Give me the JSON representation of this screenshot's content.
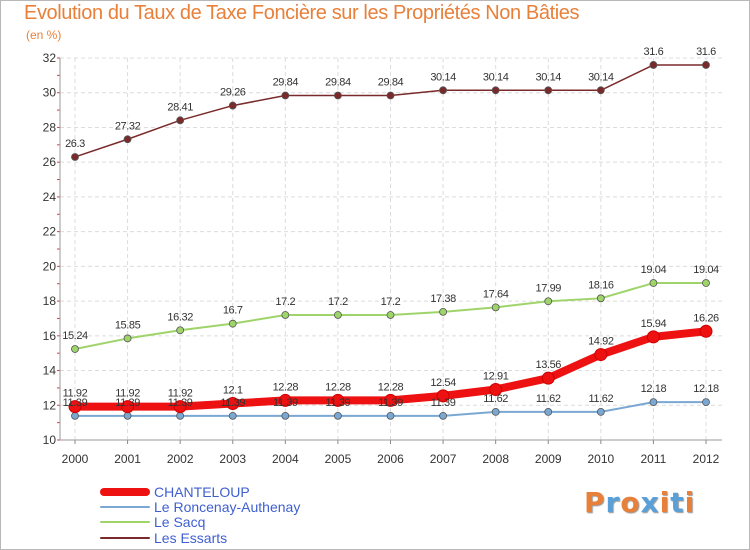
{
  "title": "Evolution du Taux de Taxe Foncière sur les Propriétés Non Bâties",
  "unit": "(en %)",
  "logo": {
    "text": "Proxiti",
    "colors": [
      "#e8803a",
      "#5aa0d8",
      "#e8803a",
      "#5aa0d8",
      "#e8803a",
      "#5aa0d8",
      "#e8803a"
    ]
  },
  "chart_data": {
    "type": "line",
    "title": "Evolution du Taux de Taxe Foncière sur les Propriétés Non Bâties",
    "ylabel": "(en %)",
    "xlabel": "",
    "x": [
      "2000",
      "2001",
      "2002",
      "2003",
      "2004",
      "2005",
      "2006",
      "2007",
      "2008",
      "2009",
      "2010",
      "2011",
      "2012"
    ],
    "ylim": [
      10,
      32
    ],
    "yticks": [
      10,
      12,
      14,
      16,
      18,
      20,
      22,
      24,
      26,
      28,
      30,
      32
    ],
    "ytick_labels": [
      "10",
      "12",
      "14",
      "16",
      "18",
      "20",
      "22",
      "24",
      "26",
      "28",
      "30",
      "32"
    ],
    "grid": true,
    "legend": "bottom-left",
    "series": [
      {
        "name": "Les Essarts",
        "color": "#7a2a2a",
        "width": 1.5,
        "values": [
          26.3,
          27.32,
          28.41,
          29.26,
          29.84,
          29.84,
          29.84,
          30.14,
          30.14,
          30.14,
          30.14,
          31.6,
          31.6
        ],
        "labels": [
          "26.3",
          "27.32",
          "28.41",
          "29.26",
          "29.84",
          "29.84",
          "29.84",
          "30.14",
          "30.14",
          "30.14",
          "30.14",
          "31.6",
          "31.6"
        ]
      },
      {
        "name": "Le Sacq",
        "color": "#9fd46a",
        "width": 2,
        "values": [
          15.24,
          15.85,
          16.32,
          16.7,
          17.2,
          17.2,
          17.2,
          17.38,
          17.64,
          17.99,
          18.16,
          19.04,
          19.04
        ],
        "labels": [
          "15.24",
          "15.85",
          "16.32",
          "16.7",
          "17.2",
          "17.2",
          "17.2",
          "17.38",
          "17.64",
          "17.99",
          "18.16",
          "19.04",
          "19.04"
        ]
      },
      {
        "name": "Le Roncenay-Authenay",
        "color": "#7aa8d2",
        "width": 2,
        "values": [
          11.39,
          11.39,
          11.39,
          11.39,
          11.39,
          11.39,
          11.39,
          11.39,
          11.62,
          11.62,
          11.62,
          12.18,
          12.18
        ],
        "labels": [
          "11.39",
          "11.39",
          "11.39",
          "11.39",
          "11.39",
          "11.39",
          "11.39",
          "11.39",
          "11.62",
          "11.62",
          "11.62",
          "12.18",
          "12.18"
        ]
      },
      {
        "name": "CHANTELOUP",
        "color": "#ee1111",
        "width": 8,
        "values": [
          11.92,
          11.92,
          11.92,
          12.1,
          12.28,
          12.28,
          12.28,
          12.54,
          12.91,
          13.56,
          14.92,
          15.94,
          16.26
        ],
        "labels": [
          "11.92",
          "11.92",
          "11.92",
          "12.1",
          "12.28",
          "12.28",
          "12.28",
          "12.54",
          "12.91",
          "13.56",
          "14.92",
          "15.94",
          "16.26"
        ]
      }
    ]
  },
  "legend_items": [
    {
      "label": "CHANTELOUP",
      "color": "#ee1111",
      "width": 8
    },
    {
      "label": "Le Roncenay-Authenay",
      "color": "#7aa8d2",
      "width": 2
    },
    {
      "label": "Le Sacq",
      "color": "#9fd46a",
      "width": 2
    },
    {
      "label": "Les Essarts",
      "color": "#7a2a2a",
      "width": 2
    }
  ]
}
